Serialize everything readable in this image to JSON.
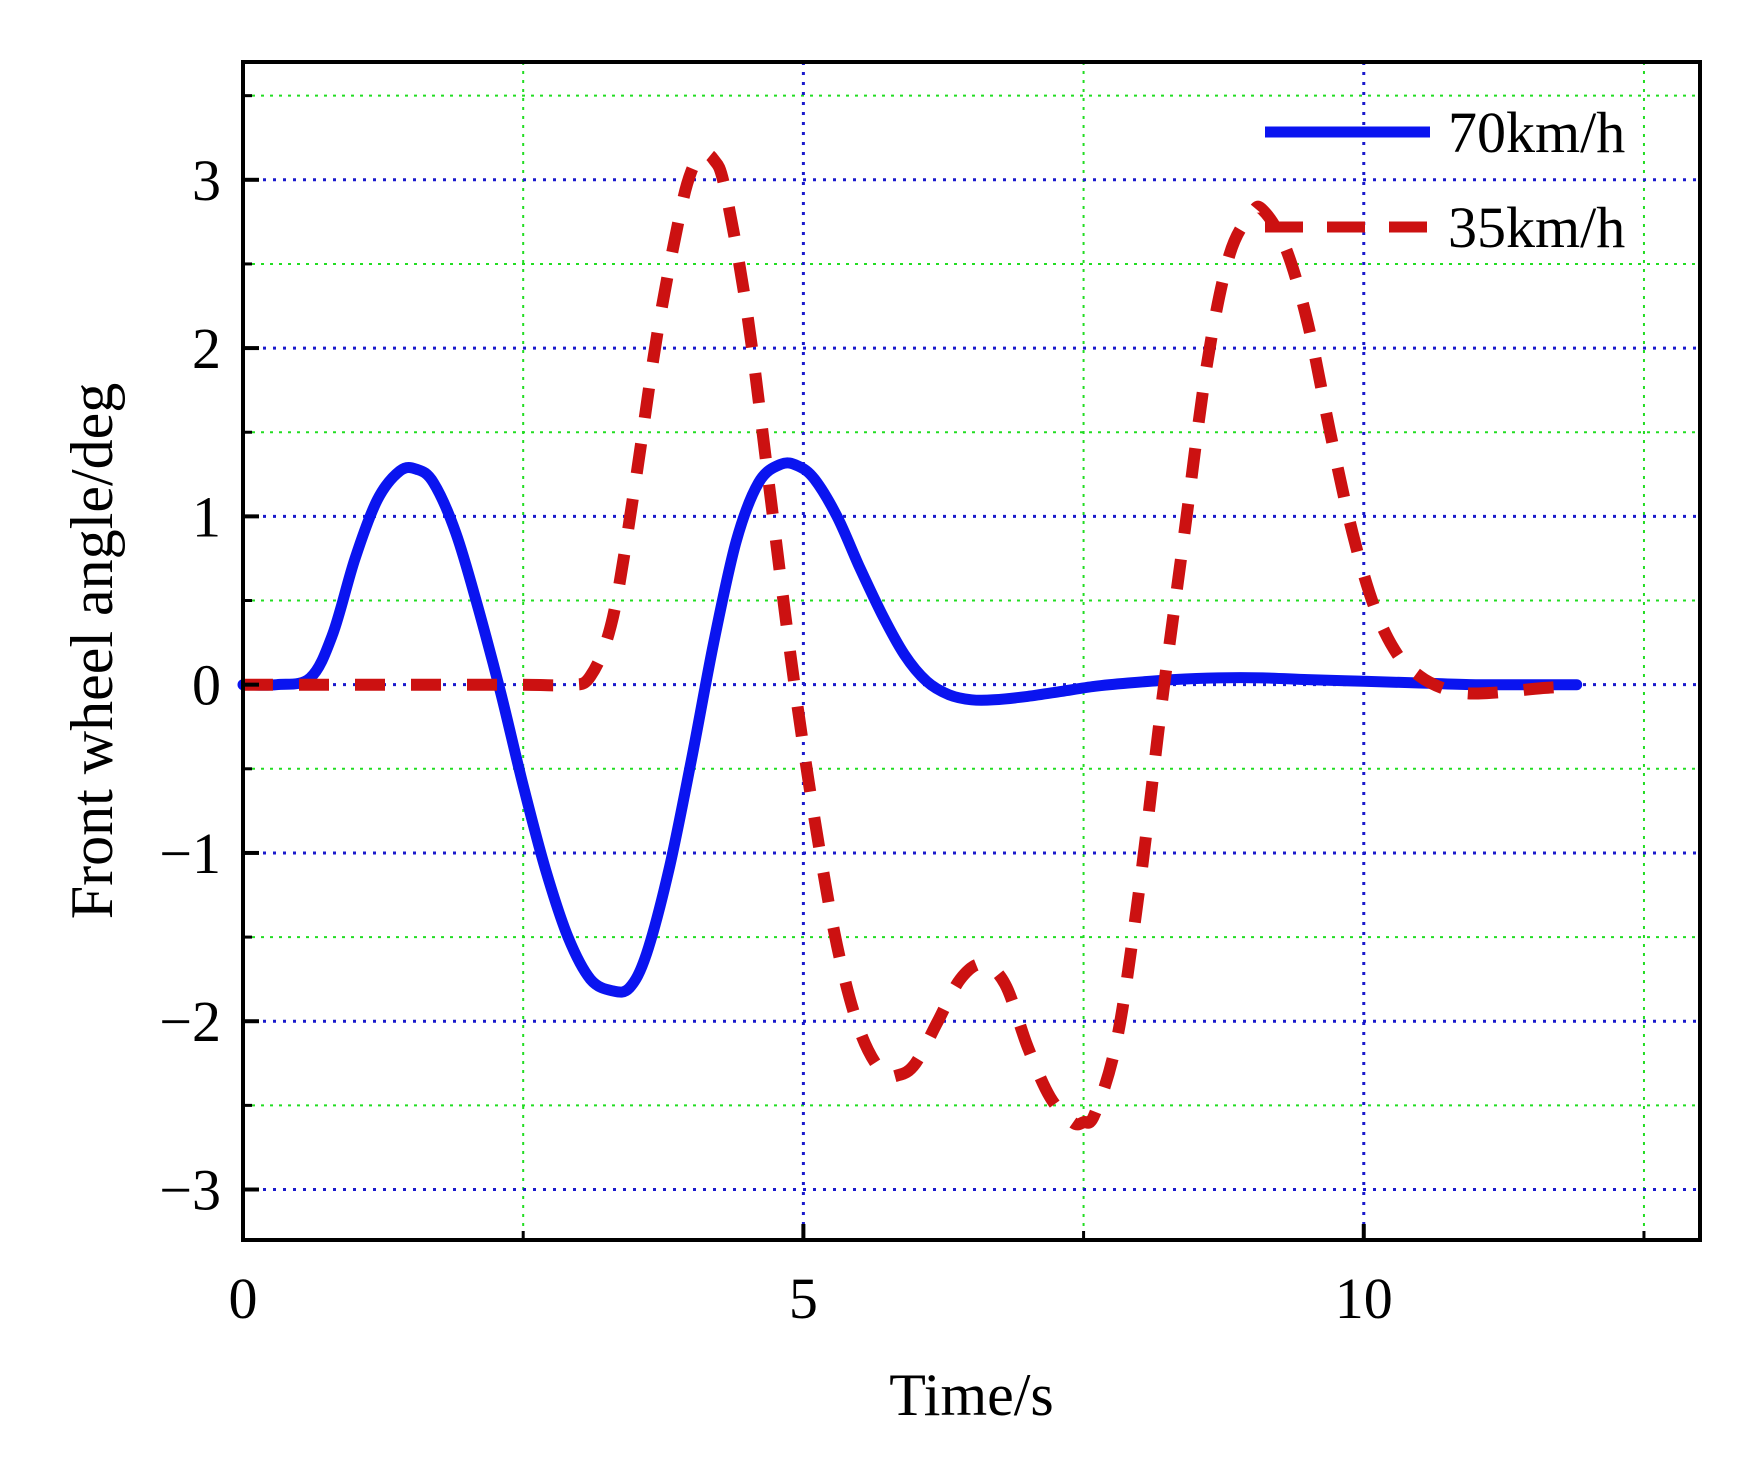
{
  "chart_data": {
    "type": "line",
    "title": "",
    "xlabel": "Time/s",
    "ylabel": "Front wheel angle/deg",
    "xlim": [
      0,
      13
    ],
    "ylim": [
      -3.3,
      3.7
    ],
    "x_ticks": [
      0,
      5,
      10
    ],
    "x_tick_labels": [
      "0",
      "5",
      "10"
    ],
    "y_ticks": [
      -3,
      -2,
      -1,
      0,
      1,
      2,
      3
    ],
    "y_tick_labels": [
      "−3",
      "−2",
      "−1",
      "0",
      "1",
      "2",
      "3"
    ],
    "grid": {
      "major": true,
      "minor": true,
      "major_color": "#1a1acc",
      "minor_color": "#22dd22"
    },
    "legend_position": "top-right",
    "series": [
      {
        "name": "70km/h",
        "color": "#0a14f0",
        "style": "solid",
        "x": [
          0,
          0.3,
          0.6,
          0.8,
          1.0,
          1.2,
          1.4,
          1.55,
          1.7,
          1.9,
          2.1,
          2.3,
          2.5,
          2.7,
          2.9,
          3.1,
          3.3,
          3.45,
          3.6,
          3.8,
          4.0,
          4.2,
          4.4,
          4.6,
          4.8,
          4.95,
          5.1,
          5.3,
          5.5,
          5.7,
          5.9,
          6.1,
          6.3,
          6.5,
          6.7,
          7.0,
          7.3,
          7.6,
          7.9,
          8.3,
          8.7,
          9.1,
          9.5,
          10.0,
          10.5,
          11.0,
          11.5,
          11.9
        ],
        "y": [
          0,
          0,
          0.04,
          0.3,
          0.75,
          1.1,
          1.27,
          1.28,
          1.2,
          0.9,
          0.45,
          -0.05,
          -0.6,
          -1.1,
          -1.5,
          -1.75,
          -1.82,
          -1.8,
          -1.6,
          -1.1,
          -0.45,
          0.25,
          0.85,
          1.2,
          1.31,
          1.3,
          1.22,
          1.0,
          0.7,
          0.42,
          0.18,
          0.02,
          -0.06,
          -0.09,
          -0.09,
          -0.07,
          -0.04,
          -0.01,
          0.01,
          0.03,
          0.04,
          0.04,
          0.03,
          0.02,
          0.01,
          0.0,
          0.0,
          0.0
        ],
        "line_labels": []
      },
      {
        "name": "35km/h",
        "color": "#cc1111",
        "style": "dashed",
        "x": [
          0,
          0.5,
          1.0,
          1.5,
          2.0,
          2.5,
          2.9,
          3.1,
          3.3,
          3.5,
          3.7,
          3.9,
          4.0,
          4.1,
          4.2,
          4.3,
          4.5,
          4.7,
          4.9,
          5.1,
          5.3,
          5.5,
          5.7,
          5.85,
          6.0,
          6.2,
          6.4,
          6.6,
          6.8,
          7.0,
          7.2,
          7.4,
          7.5,
          7.6,
          7.8,
          8.0,
          8.2,
          8.4,
          8.6,
          8.8,
          9.0,
          9.1,
          9.3,
          9.5,
          9.7,
          9.9,
          10.1,
          10.3,
          10.5,
          10.7,
          10.9,
          11.1,
          11.3,
          11.6,
          11.9
        ],
        "y": [
          0,
          0,
          0,
          0,
          0,
          0,
          0,
          0.05,
          0.4,
          1.2,
          2.1,
          2.8,
          3.05,
          3.15,
          3.12,
          2.95,
          2.2,
          1.15,
          0.1,
          -0.8,
          -1.55,
          -2.05,
          -2.3,
          -2.32,
          -2.25,
          -2.0,
          -1.75,
          -1.66,
          -1.78,
          -2.15,
          -2.45,
          -2.6,
          -2.6,
          -2.55,
          -2.1,
          -1.2,
          -0.1,
          0.9,
          1.9,
          2.55,
          2.8,
          2.82,
          2.6,
          2.15,
          1.5,
          0.9,
          0.45,
          0.18,
          0.05,
          -0.02,
          -0.05,
          -0.05,
          -0.04,
          -0.02,
          -0.01
        ],
        "line_labels": []
      }
    ]
  }
}
